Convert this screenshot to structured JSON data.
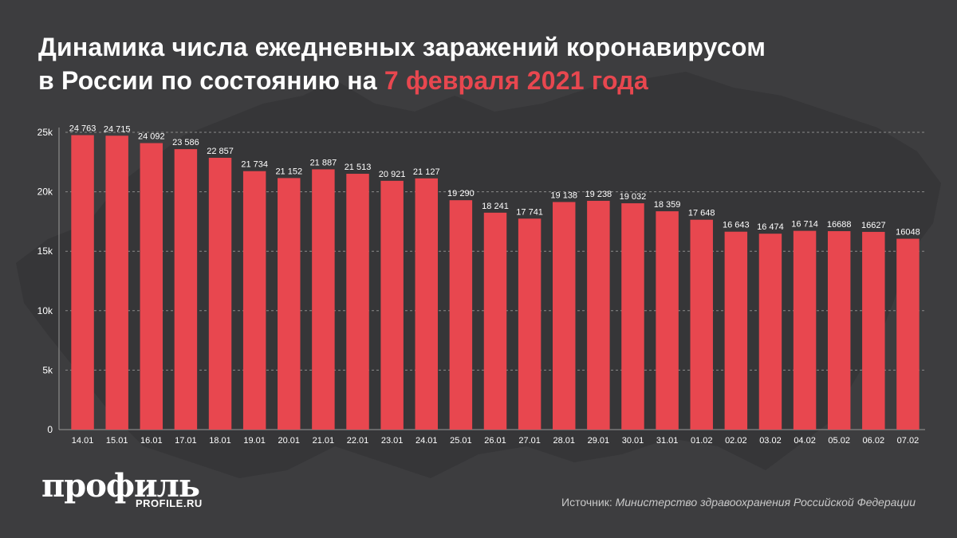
{
  "title": {
    "line1": "Динамика числа ежедневных заражений коронавирусом",
    "line2_prefix": "в России по состоянию на ",
    "line2_accent": "7 февраля 2021 года"
  },
  "colors": {
    "background": "#3d3d3f",
    "bar": "#e8474f",
    "accent": "#e8474f",
    "text": "#ffffff",
    "grid": "#8a8a8a"
  },
  "logo": {
    "word": "профиль",
    "url": "PROFILE.RU"
  },
  "source": {
    "label": "Источник:",
    "text": "Министерство здравоохранения Российской Федерации"
  },
  "chart_data": {
    "type": "bar",
    "categories": [
      "14.01",
      "15.01",
      "16.01",
      "17.01",
      "18.01",
      "19.01",
      "20.01",
      "21.01",
      "22.01",
      "23.01",
      "24.01",
      "25.01",
      "26.01",
      "27.01",
      "28.01",
      "29.01",
      "30.01",
      "31.01",
      "01.02",
      "02.02",
      "03.02",
      "04.02",
      "05.02",
      "06.02",
      "07.02"
    ],
    "values": [
      24763,
      24715,
      24092,
      23586,
      22857,
      21734,
      21152,
      21887,
      21513,
      20921,
      21127,
      19290,
      18241,
      17741,
      19138,
      19238,
      19032,
      18359,
      17648,
      16643,
      16474,
      16714,
      16688,
      16627,
      16048
    ],
    "value_labels": [
      "24 763",
      "24 715",
      "24 092",
      "23 586",
      "22 857",
      "21 734",
      "21 152",
      "21 887",
      "21 513",
      "20 921",
      "21 127",
      "19 290",
      "18 241",
      "17 741",
      "19 138",
      "19 238",
      "19 032",
      "18 359",
      "17 648",
      "16 643",
      "16 474",
      "16 714",
      "16688",
      "16627",
      "16048"
    ],
    "yticks": [
      0,
      5000,
      10000,
      15000,
      20000,
      25000
    ],
    "ytick_labels": [
      "0",
      "5k",
      "10k",
      "15k",
      "20k",
      "25k"
    ],
    "ylim": [
      0,
      25000
    ],
    "grid": true
  }
}
